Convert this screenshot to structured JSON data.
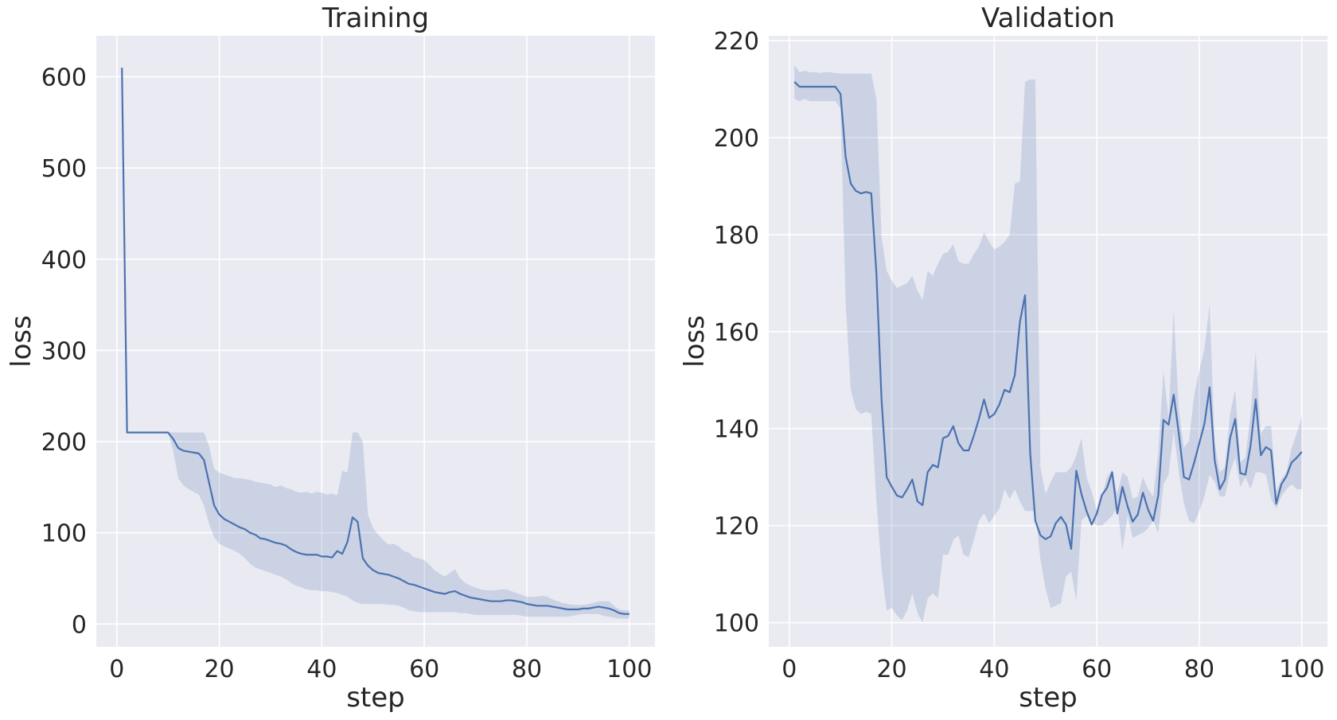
{
  "colors": {
    "background": "#ffffff",
    "plot_background": "#eaeaf2",
    "grid": "#ffffff",
    "line": "#4c72b0",
    "band": "#4c72b0",
    "text": "#262626"
  },
  "chart_data": [
    {
      "type": "line",
      "title": "Training",
      "xlabel": "step",
      "ylabel": "loss",
      "xlim": [
        -4,
        105
      ],
      "ylim": [
        -25,
        645
      ],
      "xticks": [
        0,
        20,
        40,
        60,
        80,
        100
      ],
      "yticks": [
        0,
        100,
        200,
        300,
        400,
        500,
        600
      ],
      "grid": true,
      "legend": "none",
      "series": [
        {
          "x": [
            1,
            2,
            3,
            4,
            5,
            6,
            7,
            8,
            9,
            10,
            11,
            12,
            13,
            14,
            15,
            16,
            17,
            18,
            19,
            20,
            21,
            22,
            23,
            24,
            25,
            26,
            27,
            28,
            29,
            30,
            31,
            32,
            33,
            34,
            35,
            36,
            37,
            38,
            39,
            40,
            41,
            42,
            43,
            44,
            45,
            46,
            47,
            48,
            49,
            50,
            51,
            52,
            53,
            54,
            55,
            56,
            57,
            58,
            59,
            60,
            61,
            62,
            63,
            64,
            65,
            66,
            67,
            68,
            69,
            70,
            71,
            72,
            73,
            74,
            75,
            76,
            77,
            78,
            79,
            80,
            81,
            82,
            83,
            84,
            85,
            86,
            87,
            88,
            89,
            90,
            91,
            92,
            93,
            94,
            95,
            96,
            97,
            98,
            99,
            100
          ],
          "y": [
            610,
            210,
            210,
            210,
            210,
            210,
            210,
            210,
            210,
            210,
            203,
            193,
            190,
            189,
            188,
            187,
            180,
            155,
            130,
            120,
            115,
            112,
            109,
            106,
            104,
            100,
            98,
            94,
            93,
            91,
            89,
            88,
            86,
            82,
            79,
            77,
            76,
            76,
            76,
            74,
            74,
            73,
            80,
            77,
            90,
            117,
            112,
            72,
            64,
            59,
            56,
            55,
            54,
            52,
            50,
            47,
            44,
            43,
            41,
            39,
            37,
            35,
            34,
            33,
            35,
            36,
            33,
            31,
            29,
            28,
            27,
            26,
            25,
            25,
            25,
            26,
            26,
            25,
            24,
            22,
            21,
            20,
            20,
            20,
            19,
            18,
            17,
            16,
            16,
            16,
            17,
            17,
            18,
            19,
            18,
            17,
            15,
            12,
            11,
            11
          ],
          "lower": [
            610,
            210,
            210,
            210,
            210,
            210,
            210,
            210,
            210,
            210,
            190,
            160,
            152,
            148,
            145,
            142,
            130,
            110,
            95,
            88,
            85,
            83,
            80,
            77,
            72,
            66,
            62,
            60,
            58,
            56,
            54,
            52,
            49,
            45,
            42,
            40,
            38,
            37,
            37,
            36,
            36,
            35,
            34,
            32,
            30,
            26,
            23,
            22,
            22,
            22,
            22,
            22,
            21,
            21,
            20,
            18,
            15,
            14,
            13,
            13,
            13,
            13,
            13,
            13,
            13,
            13,
            12,
            12,
            11,
            10,
            10,
            10,
            10,
            10,
            10,
            10,
            10,
            10,
            9,
            8,
            8,
            8,
            8,
            8,
            8,
            8,
            8,
            8,
            9,
            10,
            11,
            11,
            11,
            11,
            9,
            8,
            7,
            6,
            6,
            6
          ],
          "upper": [
            610,
            210,
            210,
            210,
            210,
            210,
            210,
            210,
            210,
            210,
            210,
            210,
            210,
            210,
            210,
            210,
            210,
            195,
            170,
            166,
            164,
            162,
            160,
            160,
            159,
            158,
            156,
            155,
            154,
            153,
            150,
            152,
            149,
            148,
            145,
            144,
            145,
            143,
            145,
            144,
            142,
            143,
            141,
            168,
            166,
            210,
            210,
            200,
            120,
            105,
            98,
            92,
            87,
            88,
            85,
            80,
            78,
            73,
            72,
            70,
            65,
            59,
            55,
            52,
            56,
            60,
            50,
            45,
            42,
            40,
            38,
            37,
            37,
            37,
            38,
            38,
            36,
            34,
            32,
            30,
            30,
            30,
            31,
            30,
            27,
            25,
            23,
            22,
            21,
            21,
            21,
            22,
            23,
            25,
            25,
            25,
            20,
            16,
            15,
            15
          ]
        }
      ]
    },
    {
      "type": "line",
      "title": "Validation",
      "xlabel": "step",
      "ylabel": "loss",
      "xlim": [
        -4,
        105
      ],
      "ylim": [
        95,
        221
      ],
      "xticks": [
        0,
        20,
        40,
        60,
        80,
        100
      ],
      "yticks": [
        100,
        120,
        140,
        160,
        180,
        200,
        220
      ],
      "grid": true,
      "legend": "none",
      "series": [
        {
          "x": [
            1,
            2,
            3,
            4,
            5,
            6,
            7,
            8,
            9,
            10,
            11,
            12,
            13,
            14,
            15,
            16,
            17,
            18,
            19,
            20,
            21,
            22,
            23,
            24,
            25,
            26,
            27,
            28,
            29,
            30,
            31,
            32,
            33,
            34,
            35,
            36,
            37,
            38,
            39,
            40,
            41,
            42,
            43,
            44,
            45,
            46,
            47,
            48,
            49,
            50,
            51,
            52,
            53,
            54,
            55,
            56,
            57,
            58,
            59,
            60,
            61,
            62,
            63,
            64,
            65,
            66,
            67,
            68,
            69,
            70,
            71,
            72,
            73,
            74,
            75,
            76,
            77,
            78,
            79,
            80,
            81,
            82,
            83,
            84,
            85,
            86,
            87,
            88,
            89,
            90,
            91,
            92,
            93,
            94,
            95,
            96,
            97,
            98,
            99,
            100
          ],
          "y": [
            211.5,
            210.5,
            210.5,
            210.5,
            210.5,
            210.5,
            210.5,
            210.5,
            210.5,
            209,
            196,
            190.5,
            189,
            188.5,
            188.8,
            188.5,
            172,
            146,
            130,
            128,
            126.2,
            125.8,
            127.5,
            129.5,
            125,
            124.2,
            131,
            132.5,
            132,
            138,
            138.5,
            140.5,
            137,
            135.5,
            135.5,
            138.5,
            142,
            146,
            142.2,
            143,
            145,
            148,
            147.5,
            151,
            162,
            167.5,
            135,
            121,
            118,
            117.2,
            117.8,
            120.5,
            121.8,
            120.2,
            115.2,
            131.3,
            126.5,
            123,
            120.2,
            122.5,
            126.3,
            127.8,
            131,
            122.5,
            128,
            124,
            120.8,
            122.3,
            126.8,
            123.3,
            121,
            126.3,
            141.8,
            140.8,
            147,
            139,
            130,
            129.5,
            133,
            137,
            141,
            148.5,
            133.5,
            127.5,
            129.5,
            138,
            142,
            130.8,
            130.5,
            136.5,
            146,
            134.5,
            136.2,
            135.5,
            124.5,
            128.5,
            130.2,
            133,
            134,
            135.2
          ],
          "lower": [
            208,
            207.5,
            208,
            207.5,
            207.5,
            207.5,
            207.5,
            207.5,
            207.5,
            206,
            166,
            148,
            144,
            143,
            143.5,
            143,
            125,
            111,
            102.5,
            103,
            101.5,
            100.5,
            102.5,
            106,
            102,
            100,
            105,
            106,
            105,
            114,
            114,
            117,
            118,
            114,
            113.5,
            117,
            121,
            122.5,
            120.5,
            122,
            123.5,
            127.5,
            125.5,
            127.5,
            125,
            123,
            123,
            123,
            113,
            107,
            103,
            103.5,
            104,
            109.5,
            110.5,
            104.5,
            121,
            122,
            121,
            120,
            120,
            121,
            122,
            124,
            115,
            122,
            117.5,
            118,
            118.5,
            119.5,
            121,
            118.5,
            128.5,
            130.5,
            139.5,
            131,
            124.5,
            121,
            120.5,
            123,
            126,
            130.5,
            129,
            126,
            126,
            131,
            134,
            128,
            130,
            127.5,
            131,
            131,
            130.5,
            125.5,
            123.5,
            126,
            127.5,
            128.5,
            127.5,
            127.5
          ],
          "upper": [
            215,
            213.5,
            213.8,
            213.5,
            213.5,
            213.3,
            213.5,
            213.5,
            213.3,
            213.2,
            213.2,
            213.2,
            213.2,
            213.2,
            213.2,
            213.2,
            208,
            179.5,
            172.5,
            170.5,
            169,
            169.5,
            170,
            171.5,
            168.5,
            166.5,
            172.5,
            171.5,
            174,
            176,
            176.5,
            178,
            174.5,
            174,
            174,
            176,
            177.5,
            180.5,
            178.5,
            177,
            177.5,
            178.5,
            180,
            190.5,
            191,
            211.5,
            212,
            212,
            132,
            126.5,
            129,
            131,
            131,
            131,
            132,
            134.5,
            138,
            130,
            127,
            123,
            126,
            130,
            131.5,
            126.5,
            131,
            130,
            125.5,
            126,
            130,
            127.5,
            126,
            135,
            152,
            142,
            164.5,
            144,
            136,
            137.5,
            147,
            152,
            156.5,
            165.5,
            137,
            131,
            132,
            143,
            148,
            133,
            134,
            143,
            156,
            139,
            140.5,
            140.5,
            127,
            129.5,
            131,
            136,
            139,
            142.5
          ]
        }
      ]
    }
  ]
}
